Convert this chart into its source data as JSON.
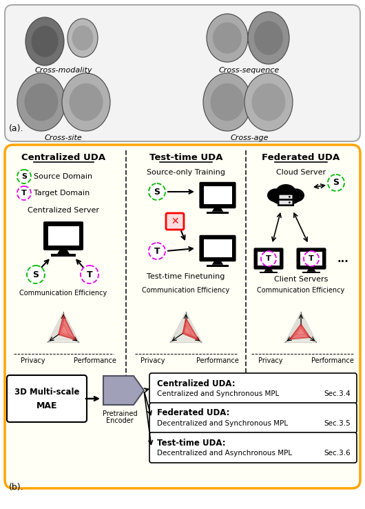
{
  "bg_color_top": "#f0f0f0",
  "bg_color_bottom": "#fffff5",
  "orange_border": "#FFA500",
  "gray_border": "#aaaaaa",
  "section_a_label": "(a).",
  "section_b_label": "(b).",
  "cross_labels": [
    "Cross-modality",
    "Cross-site",
    "Cross-sequence",
    "Cross-age"
  ],
  "uda_titles": [
    "Centralized UDA",
    "Test-time UDA",
    "Federated UDA"
  ],
  "legend_source_color": "#00bb00",
  "legend_target_color": "#ee00ee",
  "output_boxes": [
    {
      "bold": "Centralized UDA:",
      "text": "Centralized and Synchronous MPL",
      "sec": "Sec.3.4"
    },
    {
      "bold": "Federated UDA:",
      "text": "Decentralized and Synchronous MPL",
      "sec": "Sec.3.5"
    },
    {
      "bold": "Test-time UDA:",
      "text": "Decentralized and Asynchronous MPL",
      "sec": "Sec.3.6"
    }
  ],
  "radar_fill": "#f08080",
  "radar_edge": "#cc0000",
  "radar_grid": "#aaaaaa"
}
